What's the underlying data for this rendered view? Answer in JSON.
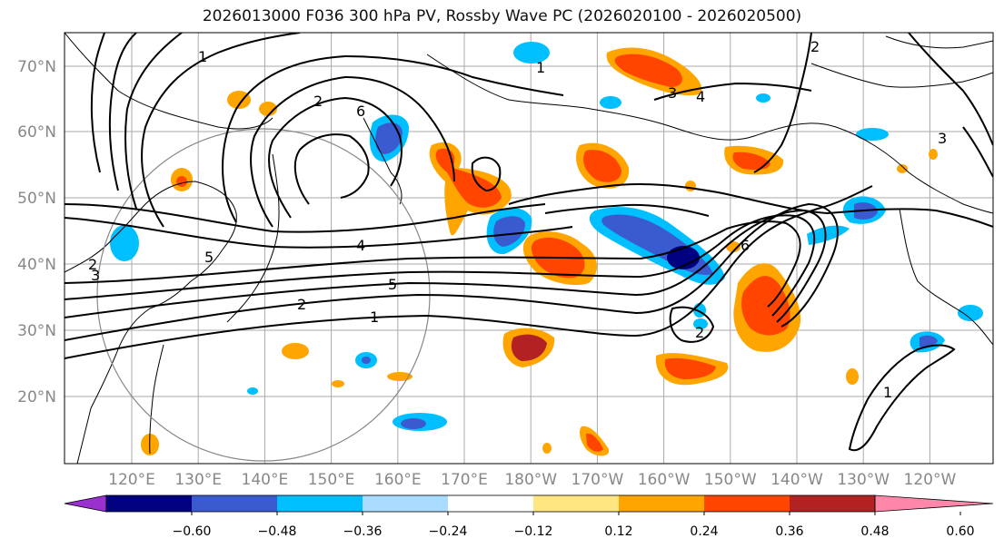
{
  "title": "2026013000 F036 300 hPa PV, Rossby Wave PC (2026020100 - 2026020500)",
  "lat_labels": [
    "70°N",
    "60°N",
    "50°N",
    "40°N",
    "30°N",
    "20°N"
  ],
  "lon_labels": [
    "120°E",
    "130°E",
    "140°E",
    "150°E",
    "160°E",
    "170°E",
    "180°W",
    "170°W",
    "160°W",
    "150°W",
    "140°W",
    "130°W",
    "120°W"
  ],
  "colorbar": {
    "labels": [
      "−0.60",
      "−0.48",
      "−0.36",
      "−0.24",
      "−0.12",
      "0.12",
      "0.24",
      "0.36",
      "0.48",
      "0.60"
    ],
    "colors": [
      "#9b30d0",
      "#000080",
      "#3a5bd0",
      "#00bfff",
      "#aadcff",
      "#ffffff",
      "#ffe680",
      "#ffa500",
      "#ff4500",
      "#b22222",
      "#ff88aa"
    ]
  },
  "contour_labels": [
    "1",
    "2",
    "3",
    "4",
    "5",
    "6"
  ]
}
